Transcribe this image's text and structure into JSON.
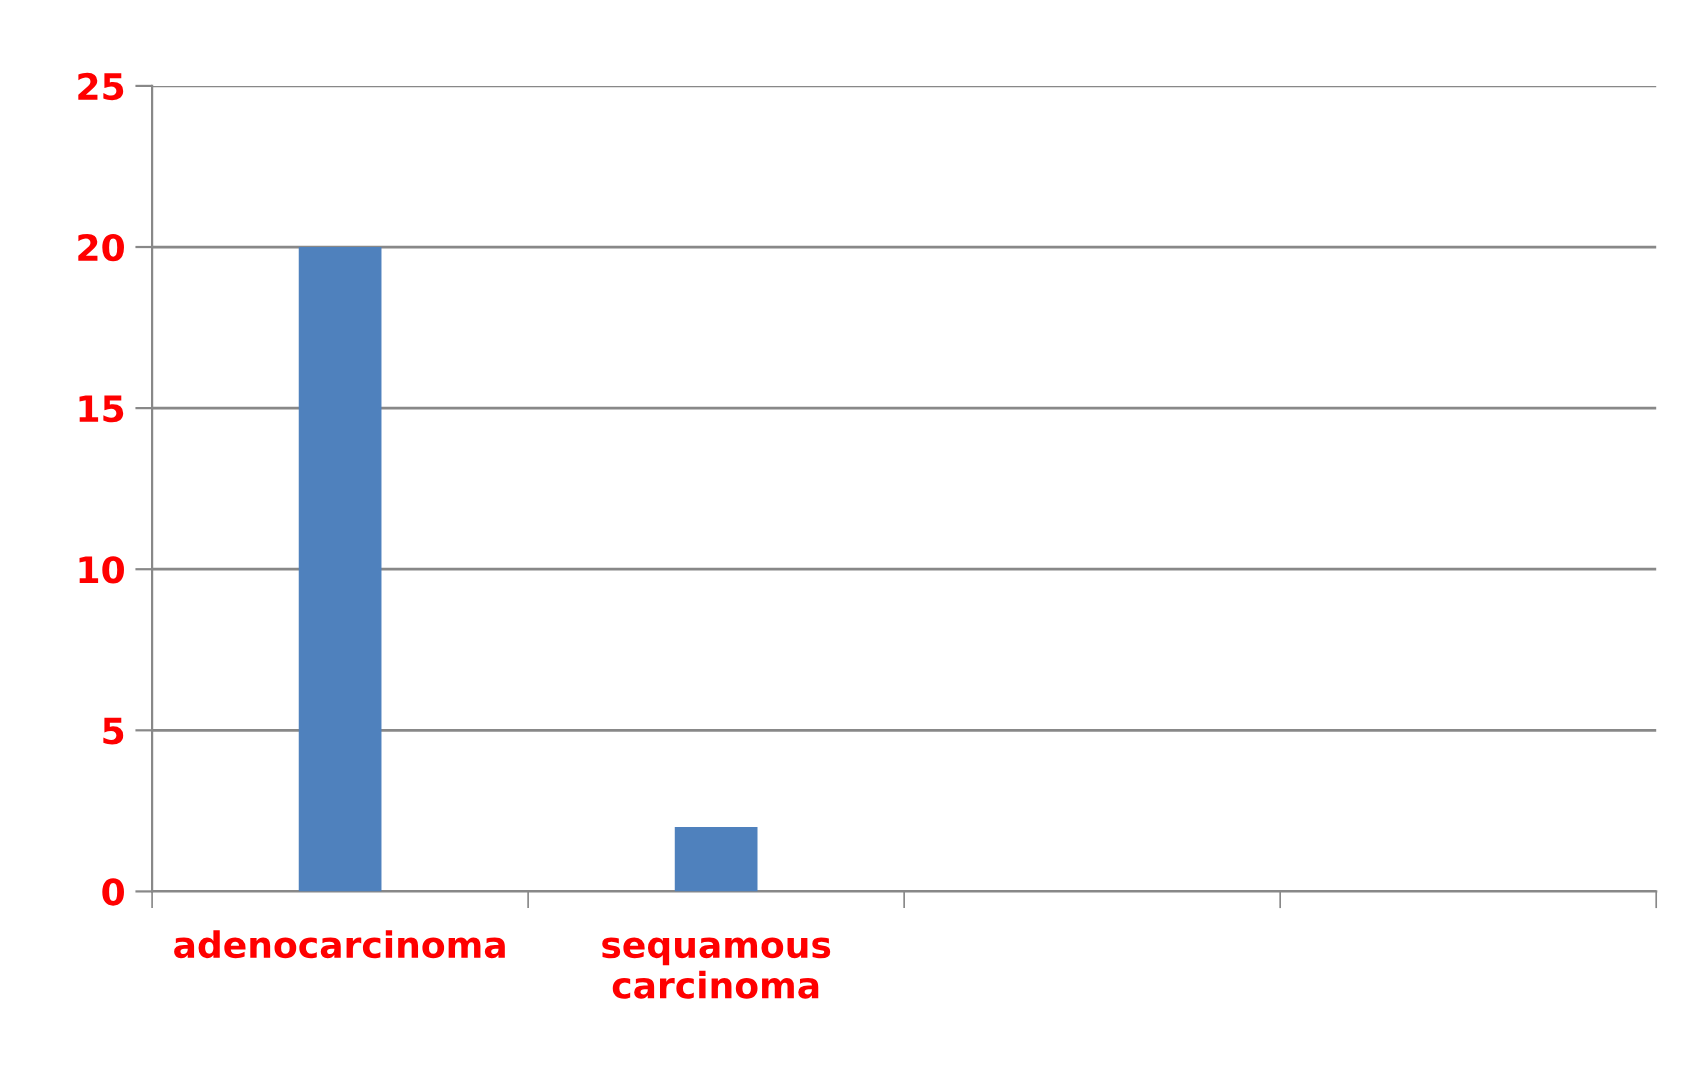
{
  "chart_data": {
    "type": "bar",
    "categories": [
      "adenocarcinoma",
      "sequamous\ncarcinoma",
      null,
      null
    ],
    "series": [
      {
        "color": "#4f81bd",
        "values": [
          20,
          2,
          null,
          null
        ]
      }
    ],
    "ylim": [
      0,
      25
    ],
    "yticks": [
      0,
      5,
      10,
      15,
      20,
      25
    ],
    "grid": "y"
  }
}
